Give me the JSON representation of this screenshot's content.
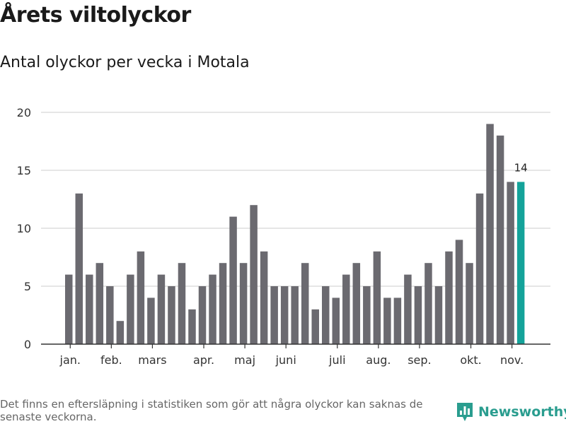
{
  "header": {
    "title": "Årets viltolyckor",
    "subtitle": "Antal olyckor per vecka i Motala"
  },
  "footer": {
    "note": "Det finns en eftersläpning i statistiken som gör att några olyckor kan saknas de senaste veckorna.",
    "brand": "Newsworthy"
  },
  "colors": {
    "bar": "#6b6a70",
    "highlight": "#14a39a",
    "grid": "#dddddd",
    "brand": "#2a9d8f"
  },
  "chart_data": {
    "type": "bar",
    "title": "Årets viltolyckor",
    "subtitle": "Antal olyckor per vecka i Motala",
    "xlabel": "",
    "ylabel": "",
    "ylim": [
      0,
      20
    ],
    "yticks": [
      0,
      5,
      10,
      15,
      20
    ],
    "grid": true,
    "values": [
      6,
      13,
      6,
      7,
      5,
      2,
      6,
      8,
      4,
      6,
      5,
      7,
      3,
      5,
      6,
      7,
      11,
      7,
      12,
      8,
      5,
      5,
      5,
      7,
      3,
      5,
      4,
      6,
      7,
      5,
      8,
      4,
      4,
      6,
      5,
      7,
      5,
      8,
      9,
      7,
      13,
      19,
      18,
      14,
      14
    ],
    "highlight_index": 44,
    "highlight_label": "14",
    "month_labels": [
      {
        "label": "jan.",
        "bar": 0.5
      },
      {
        "label": "feb.",
        "bar": 4.5
      },
      {
        "label": "mars",
        "bar": 8.5
      },
      {
        "label": "apr.",
        "bar": 13.5
      },
      {
        "label": "maj",
        "bar": 17.5
      },
      {
        "label": "juni",
        "bar": 21.5
      },
      {
        "label": "juli",
        "bar": 26.5
      },
      {
        "label": "aug.",
        "bar": 30.5
      },
      {
        "label": "sep.",
        "bar": 34.5
      },
      {
        "label": "okt.",
        "bar": 39.5
      },
      {
        "label": "nov.",
        "bar": 43.5
      }
    ]
  }
}
